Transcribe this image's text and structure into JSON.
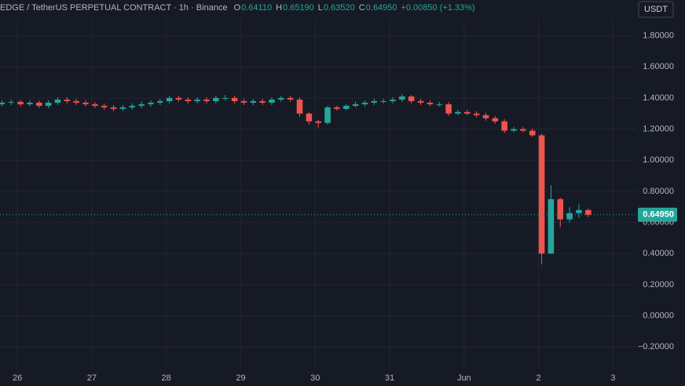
{
  "header": {
    "title": "EDGE / TetherUS PERPETUAL CONTRACT · 1h · Binance",
    "ohlc": [
      {
        "key": "O",
        "value": "0.64110"
      },
      {
        "key": "H",
        "value": "0.65190"
      },
      {
        "key": "L",
        "value": "0.63520"
      },
      {
        "key": "C",
        "value": "0.64950"
      }
    ],
    "change": "+0.00850 (+1.33%)",
    "currency_button": "USDT"
  },
  "chart_data": {
    "type": "candlestick",
    "x": [
      -5,
      -2,
      1,
      4,
      7,
      10,
      13,
      16,
      19,
      22,
      25,
      28,
      31,
      34,
      37,
      40,
      43,
      46,
      49,
      52,
      55,
      58,
      61,
      64,
      67,
      70,
      73,
      76,
      79,
      82,
      85,
      88,
      91,
      94,
      97,
      100,
      103,
      106,
      109,
      112,
      115,
      118,
      121,
      124,
      127,
      130,
      133,
      136,
      139,
      142,
      145,
      148,
      151,
      154,
      157,
      160,
      163,
      166,
      169,
      172,
      175,
      178,
      181,
      184
    ],
    "opens": [
      1.36,
      1.37,
      1.375,
      1.36,
      1.37,
      1.35,
      1.37,
      1.39,
      1.38,
      1.37,
      1.36,
      1.35,
      1.34,
      1.33,
      1.34,
      1.35,
      1.36,
      1.37,
      1.38,
      1.4,
      1.39,
      1.38,
      1.39,
      1.38,
      1.4,
      1.4,
      1.38,
      1.37,
      1.38,
      1.37,
      1.39,
      1.4,
      1.39,
      1.3,
      1.25,
      1.24,
      1.34,
      1.33,
      1.35,
      1.36,
      1.37,
      1.38,
      1.38,
      1.39,
      1.41,
      1.38,
      1.37,
      1.36,
      1.36,
      1.3,
      1.31,
      1.3,
      1.29,
      1.27,
      1.25,
      1.19,
      1.2,
      1.19,
      1.16,
      0.4,
      0.75,
      0.62,
      0.66,
      0.68
    ],
    "highs": [
      1.385,
      1.39,
      1.39,
      1.385,
      1.385,
      1.385,
      1.405,
      1.405,
      1.395,
      1.385,
      1.375,
      1.365,
      1.355,
      1.355,
      1.365,
      1.375,
      1.385,
      1.395,
      1.415,
      1.415,
      1.405,
      1.405,
      1.405,
      1.415,
      1.42,
      1.415,
      1.395,
      1.395,
      1.395,
      1.405,
      1.415,
      1.415,
      1.405,
      1.31,
      1.26,
      1.35,
      1.35,
      1.36,
      1.375,
      1.385,
      1.395,
      1.395,
      1.405,
      1.425,
      1.42,
      1.395,
      1.385,
      1.375,
      1.375,
      1.325,
      1.325,
      1.315,
      1.305,
      1.285,
      1.265,
      1.215,
      1.215,
      1.205,
      1.17,
      0.84,
      0.76,
      0.7,
      0.72,
      0.69
    ],
    "lows": [
      1.345,
      1.355,
      1.345,
      1.345,
      1.335,
      1.335,
      1.355,
      1.365,
      1.355,
      1.345,
      1.335,
      1.325,
      1.315,
      1.315,
      1.325,
      1.335,
      1.345,
      1.355,
      1.365,
      1.375,
      1.365,
      1.365,
      1.365,
      1.365,
      1.385,
      1.365,
      1.355,
      1.355,
      1.355,
      1.355,
      1.375,
      1.375,
      1.28,
      1.23,
      1.21,
      1.23,
      1.32,
      1.32,
      1.34,
      1.345,
      1.355,
      1.365,
      1.365,
      1.375,
      1.365,
      1.355,
      1.345,
      1.345,
      1.285,
      1.29,
      1.29,
      1.275,
      1.255,
      1.235,
      1.175,
      1.18,
      1.18,
      1.15,
      0.33,
      0.6,
      0.57,
      0.6,
      0.63,
      0.635
    ],
    "closes": [
      1.37,
      1.375,
      1.36,
      1.37,
      1.35,
      1.37,
      1.39,
      1.38,
      1.37,
      1.36,
      1.35,
      1.34,
      1.33,
      1.34,
      1.35,
      1.36,
      1.37,
      1.38,
      1.4,
      1.39,
      1.38,
      1.39,
      1.38,
      1.4,
      1.4,
      1.38,
      1.37,
      1.38,
      1.37,
      1.39,
      1.4,
      1.39,
      1.3,
      1.25,
      1.24,
      1.34,
      1.33,
      1.35,
      1.36,
      1.37,
      1.38,
      1.38,
      1.39,
      1.41,
      1.38,
      1.37,
      1.36,
      1.36,
      1.3,
      1.31,
      1.3,
      1.29,
      1.27,
      1.25,
      1.19,
      1.2,
      1.19,
      1.16,
      0.4,
      0.75,
      0.62,
      0.66,
      0.68,
      0.6495
    ],
    "up_color": "#26a69a",
    "down_color": "#ef5350",
    "xlim": [
      -5.6,
      199.5
    ],
    "xticks": [
      {
        "value": 0,
        "label": "26"
      },
      {
        "value": 24,
        "label": "27"
      },
      {
        "value": 48,
        "label": "28"
      },
      {
        "value": 72,
        "label": "29"
      },
      {
        "value": 96,
        "label": "30"
      },
      {
        "value": 120,
        "label": "31"
      },
      {
        "value": 144,
        "label": "Jun"
      },
      {
        "value": 168,
        "label": "2"
      },
      {
        "value": 192,
        "label": "3"
      }
    ],
    "ylim": [
      -0.34,
      2.03
    ],
    "yticks": [
      {
        "value": -0.2,
        "label": "−0.20000"
      },
      {
        "value": 0,
        "label": "0.00000"
      },
      {
        "value": 0.2,
        "label": "0.20000"
      },
      {
        "value": 0.4,
        "label": "0.40000"
      },
      {
        "value": 0.6,
        "label": "0.60000"
      },
      {
        "value": 0.8,
        "label": "0.80000"
      },
      {
        "value": 1,
        "label": "1.00000"
      },
      {
        "value": 1.2,
        "label": "1.20000"
      },
      {
        "value": 1.4,
        "label": "1.40000"
      },
      {
        "value": 1.6,
        "label": "1.60000"
      },
      {
        "value": 1.8,
        "label": "1.80000"
      }
    ],
    "last_price": {
      "value": 0.6495,
      "label": "0.64950"
    },
    "grid": true
  }
}
